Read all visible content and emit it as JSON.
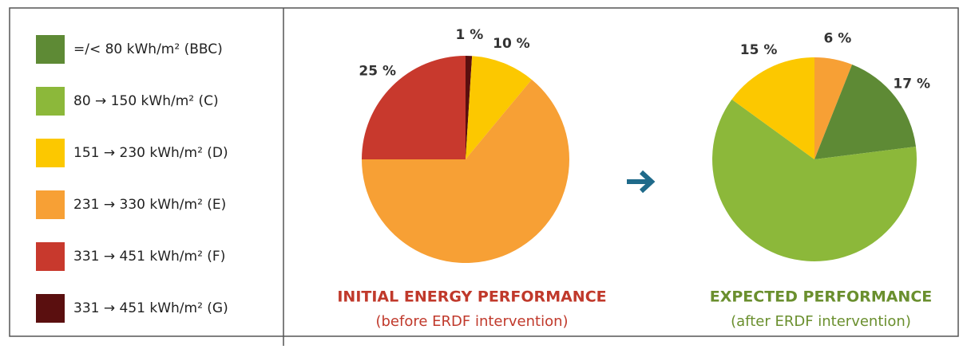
{
  "legend": {
    "labels": [
      "=/< 80 kWh/m² (BBC)",
      "80 → 150 kWh/m² (C)",
      "151 → 230 kWh/m² (D)",
      "231 → 330 kWh/m² (E)",
      "331 → 451 kWh/m² (F)",
      "331 → 451 kWh/m² (G)"
    ],
    "colors": [
      "#5e8a35",
      "#8cb83a",
      "#fcc800",
      "#f7a035",
      "#c8392d",
      "#5a0f0f"
    ]
  },
  "chart_data": [
    {
      "type": "pie",
      "title": "INITIAL ENERGY PERFORMANCE",
      "subtitle": "(before ERDF intervention)",
      "title_color": "#c0392b",
      "values": [
        1,
        10,
        64,
        25
      ],
      "value_labels": [
        "1 %",
        "10 %",
        null,
        "25 %"
      ],
      "colors": [
        "#5a0f0f",
        "#fcc800",
        "#f7a035",
        "#c8392d"
      ]
    },
    {
      "type": "pie",
      "title": "EXPECTED PERFORMANCE",
      "subtitle": "(after ERDF intervention)",
      "title_color": "#6a8f2e",
      "values": [
        6,
        17,
        62,
        15
      ],
      "value_labels": [
        "6 %",
        "17 %",
        null,
        "15 %"
      ],
      "colors": [
        "#f7a035",
        "#5e8a35",
        "#8cb83a",
        "#fcc800"
      ]
    }
  ]
}
